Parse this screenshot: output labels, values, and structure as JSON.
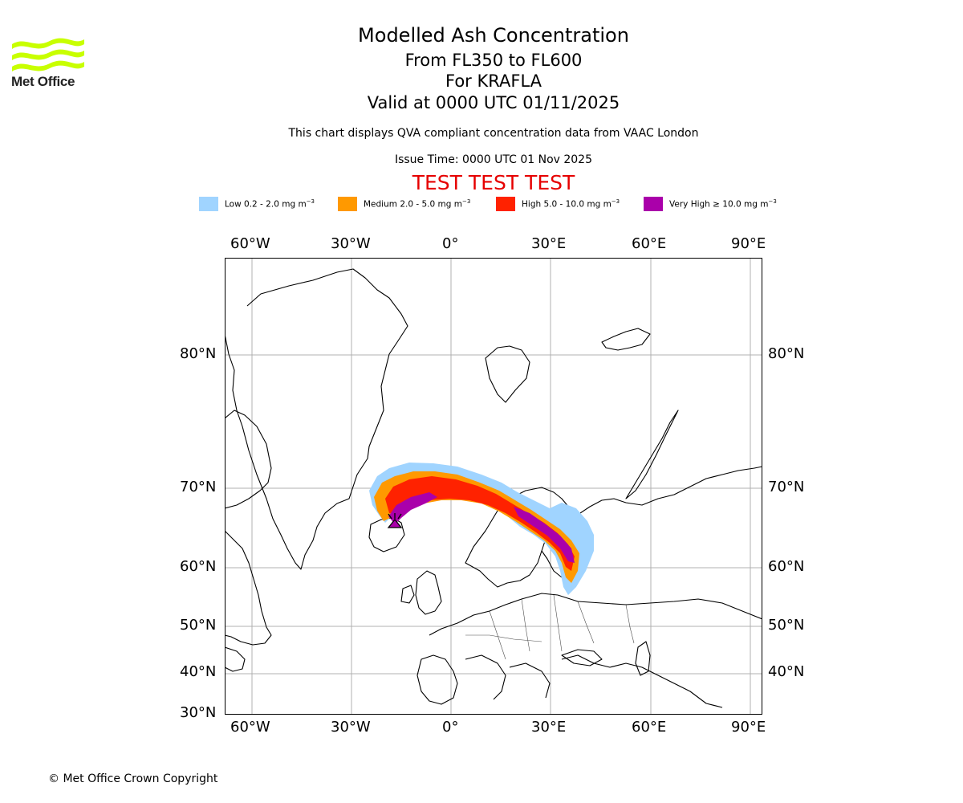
{
  "header": {
    "title": "Modelled Ash Concentration",
    "levels": "From FL350 to FL600",
    "volcano": "For KRAFLA",
    "valid": "Valid at 0000 UTC 01/11/2025",
    "compliance_note": "This chart displays QVA compliant concentration data from VAAC London",
    "issue_time": "Issue Time: 0000 UTC 01 Nov 2025",
    "test_banner": "TEST TEST TEST"
  },
  "logo": {
    "text": "Met Office",
    "color": "#c8ff00"
  },
  "legend": [
    {
      "label": "Low 0.2 - 2.0 mg m",
      "unit_exp": "−3",
      "color": "#a0d4ff"
    },
    {
      "label": "Medium 2.0 - 5.0 mg m",
      "unit_exp": "−3",
      "color": "#ff9900"
    },
    {
      "label": "High 5.0 - 10.0 mg m",
      "unit_exp": "−3",
      "color": "#ff2200"
    },
    {
      "label": "Very High ≥ 10.0 mg m",
      "unit_exp": "−3",
      "color": "#aa00aa"
    }
  ],
  "map": {
    "lon_labels": [
      "60°W",
      "30°W",
      "0°",
      "30°E",
      "60°E",
      "90°E"
    ],
    "lat_labels": [
      "80°N",
      "70°N",
      "60°N",
      "50°N",
      "40°N",
      "30°N"
    ],
    "lon_values": [
      -60,
      -30,
      0,
      30,
      60,
      90
    ],
    "lat_values": [
      80,
      70,
      60,
      50,
      40,
      30
    ],
    "source_volcano": "KRAFLA",
    "source_lat": 65.7,
    "source_lon": -16.8
  },
  "footer": {
    "copyright": "© Met Office Crown Copyright"
  }
}
